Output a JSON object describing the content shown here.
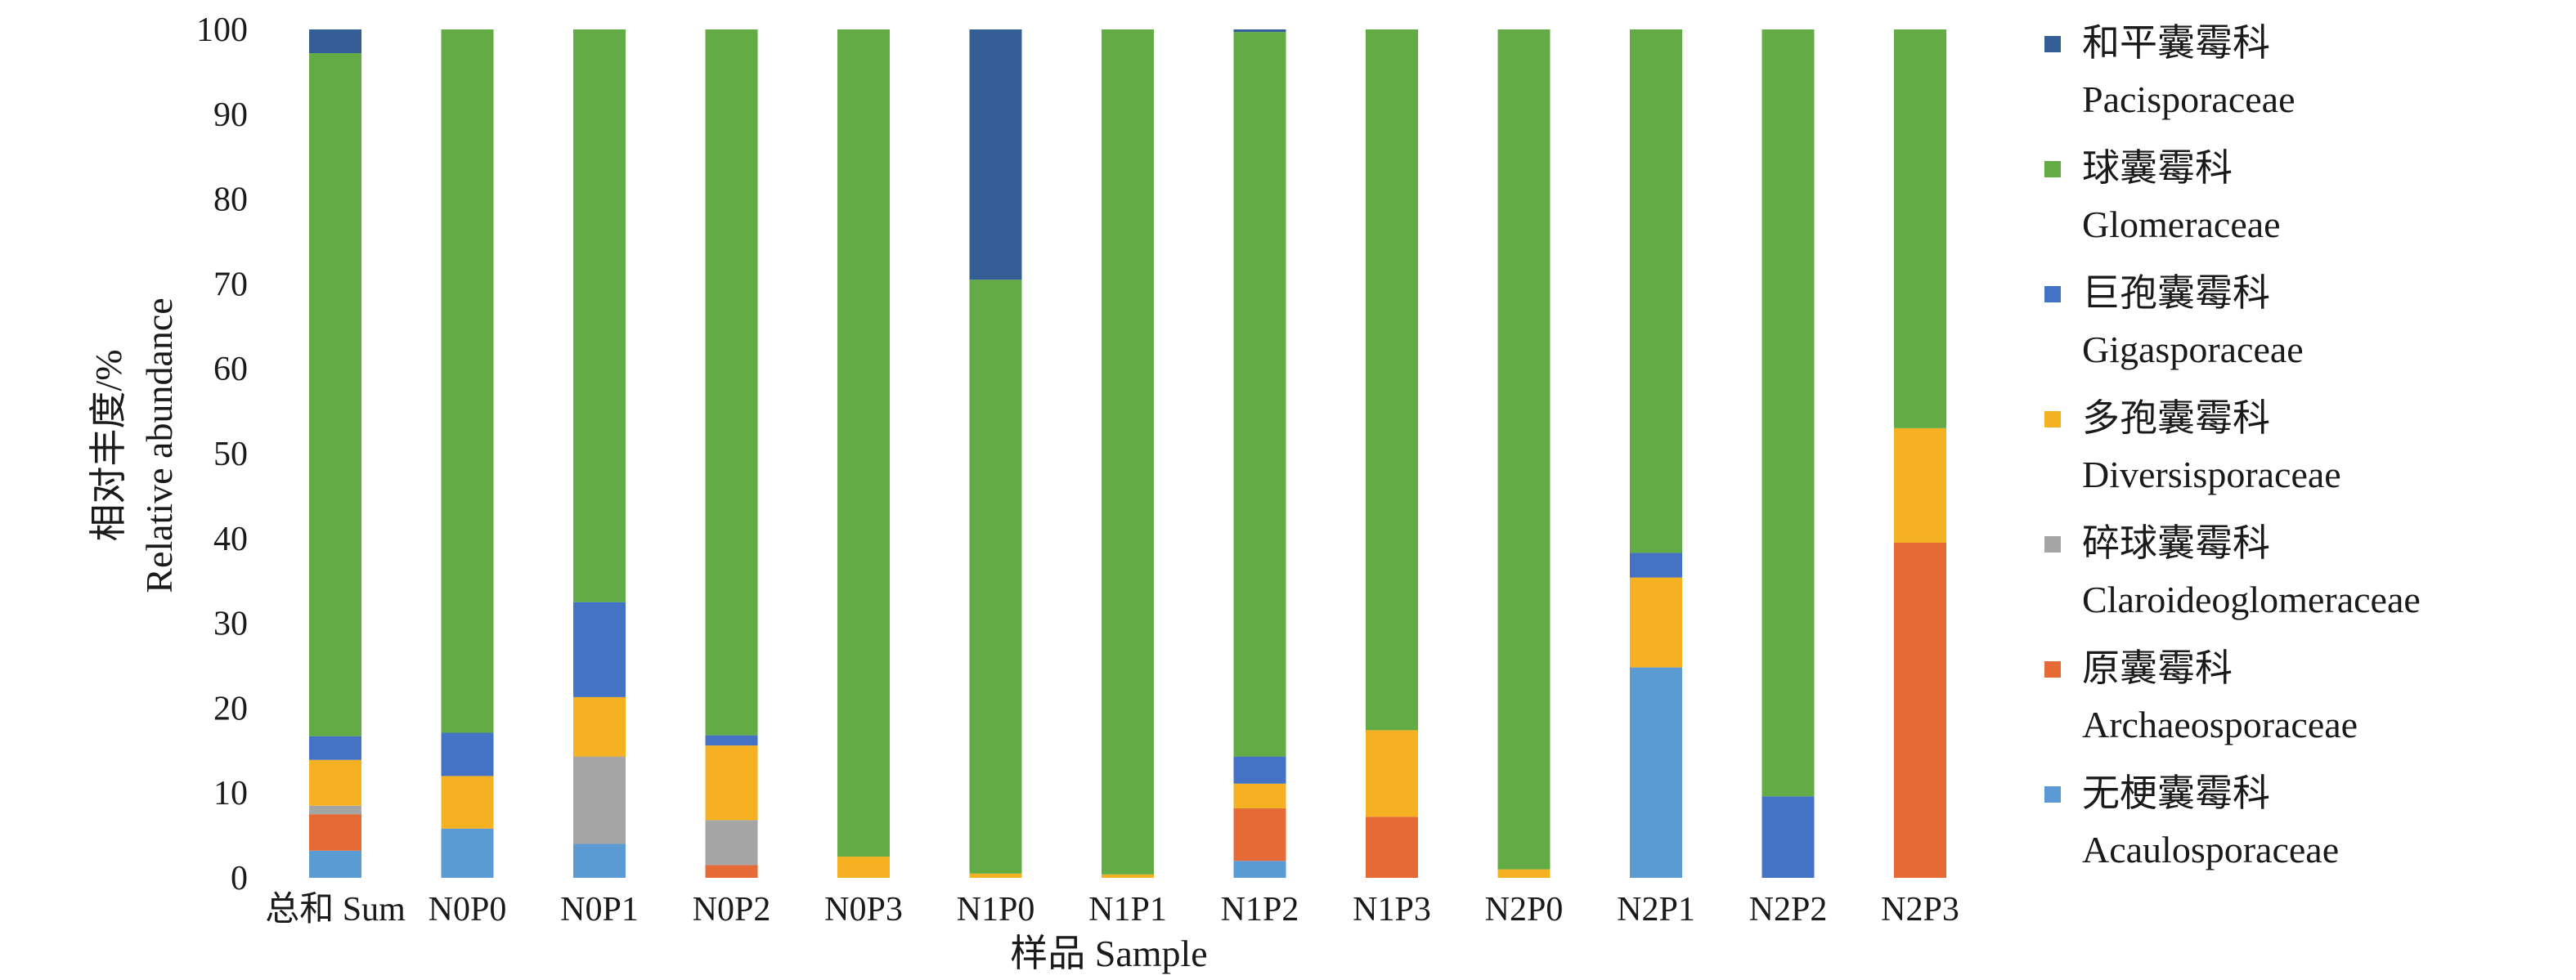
{
  "chart_data": {
    "type": "bar",
    "stacked": true,
    "xlabel": "样品 Sample",
    "ylabel_cn": "相对丰度/%",
    "ylabel_en": "Relative abundance",
    "ylim": [
      0,
      100
    ],
    "yticks": [
      0,
      10,
      20,
      30,
      40,
      50,
      60,
      70,
      80,
      90,
      100
    ],
    "grid": false,
    "legend_position": "right",
    "categories": [
      "总和 Sum",
      "N0P0",
      "N0P1",
      "N0P2",
      "N0P3",
      "N1P0",
      "N1P1",
      "N1P2",
      "N1P3",
      "N2P0",
      "N2P1",
      "N2P2",
      "N2P3"
    ],
    "series": [
      {
        "name_cn": "无梗囊霉科",
        "name": "Acaulosporaceae",
        "color": "#5b9bd5",
        "values": [
          3.2,
          5.8,
          4.0,
          0,
          0,
          0,
          0,
          2.0,
          0,
          0,
          24.8,
          0,
          0
        ]
      },
      {
        "name_cn": "原囊霉科",
        "name": "Archaeosporaceae",
        "color": "#e56a35",
        "values": [
          4.3,
          0,
          0,
          1.5,
          0,
          0,
          0,
          6.2,
          7.2,
          0,
          0,
          0,
          39.5
        ]
      },
      {
        "name_cn": "碎球囊霉科",
        "name": "Claroideoglomeraceae",
        "color": "#a5a5a5",
        "values": [
          1.0,
          0,
          10.3,
          5.3,
          0,
          0,
          0,
          0,
          0,
          0,
          0,
          0,
          0
        ]
      },
      {
        "name_cn": "多孢囊霉科",
        "name": "Diversisporaceae",
        "color": "#f5b122",
        "values": [
          5.4,
          6.2,
          7.0,
          8.8,
          2.5,
          0.5,
          0.4,
          2.9,
          10.2,
          1.0,
          10.6,
          0,
          13.5
        ]
      },
      {
        "name_cn": "巨孢囊霉科",
        "name": "Gigasporaceae",
        "color": "#4472c4",
        "values": [
          2.8,
          5.1,
          11.2,
          1.2,
          0,
          0,
          0,
          3.2,
          0,
          0,
          2.9,
          9.6,
          0
        ]
      },
      {
        "name_cn": "球囊霉科",
        "name": "Glomeraceae",
        "color": "#63ac45",
        "values": [
          80.5,
          82.9,
          67.5,
          83.2,
          97.5,
          70.0,
          99.6,
          85.4,
          82.6,
          99.0,
          61.7,
          90.4,
          47.0
        ]
      },
      {
        "name_cn": "和平囊霉科",
        "name": "Pacisporaceae",
        "color": "#345d95",
        "values": [
          2.8,
          0,
          0,
          0,
          0,
          29.5,
          0,
          0.3,
          0,
          0,
          0,
          0,
          0
        ]
      }
    ]
  }
}
